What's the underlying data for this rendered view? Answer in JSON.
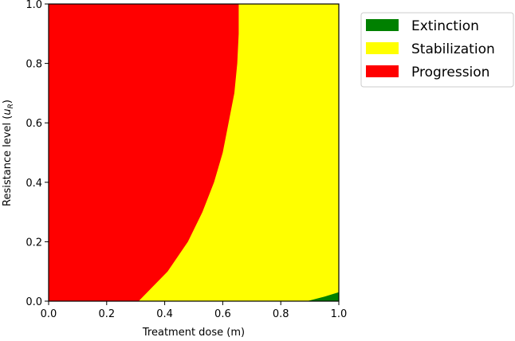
{
  "chart_data": {
    "type": "heatmap",
    "title": "",
    "xlabel": "Treatment dose (m)",
    "ylabel": "Resistance level (u_R)",
    "ylabel_main": "Resistance level (",
    "ylabel_var": "u",
    "ylabel_sub": "R",
    "ylabel_close": ")",
    "xlim": [
      0.0,
      1.0
    ],
    "ylim": [
      0.0,
      1.0
    ],
    "xticks": [
      "0.0",
      "0.2",
      "0.4",
      "0.6",
      "0.8",
      "1.0"
    ],
    "yticks": [
      "0.0",
      "0.2",
      "0.4",
      "0.6",
      "0.8",
      "1.0"
    ],
    "grid": false,
    "legend_position": "outside upper right",
    "regions": [
      {
        "name": "Extinction",
        "color": "#008000",
        "description": "small wedge near m≈0.9–1.0, u_R≈0–0.03"
      },
      {
        "name": "Stabilization",
        "color": "#ffff00",
        "description": "between progression boundary and right edge"
      },
      {
        "name": "Progression",
        "color": "#ff0000",
        "description": "left region, low dose"
      }
    ],
    "progression_boundary": {
      "u_R": [
        0.0,
        0.1,
        0.2,
        0.3,
        0.4,
        0.5,
        0.6,
        0.7,
        0.8,
        0.9,
        1.0
      ],
      "m": [
        0.31,
        0.41,
        0.48,
        0.53,
        0.57,
        0.6,
        0.62,
        0.64,
        0.65,
        0.655,
        0.655
      ]
    },
    "extinction_boundary": {
      "m": [
        0.89,
        0.95,
        1.0
      ],
      "u_R": [
        0.0,
        0.015,
        0.03
      ]
    }
  },
  "legend": {
    "items": [
      {
        "label": "Extinction",
        "color": "#008000"
      },
      {
        "label": "Stabilization",
        "color": "#ffff00"
      },
      {
        "label": "Progression",
        "color": "#ff0000"
      }
    ]
  }
}
